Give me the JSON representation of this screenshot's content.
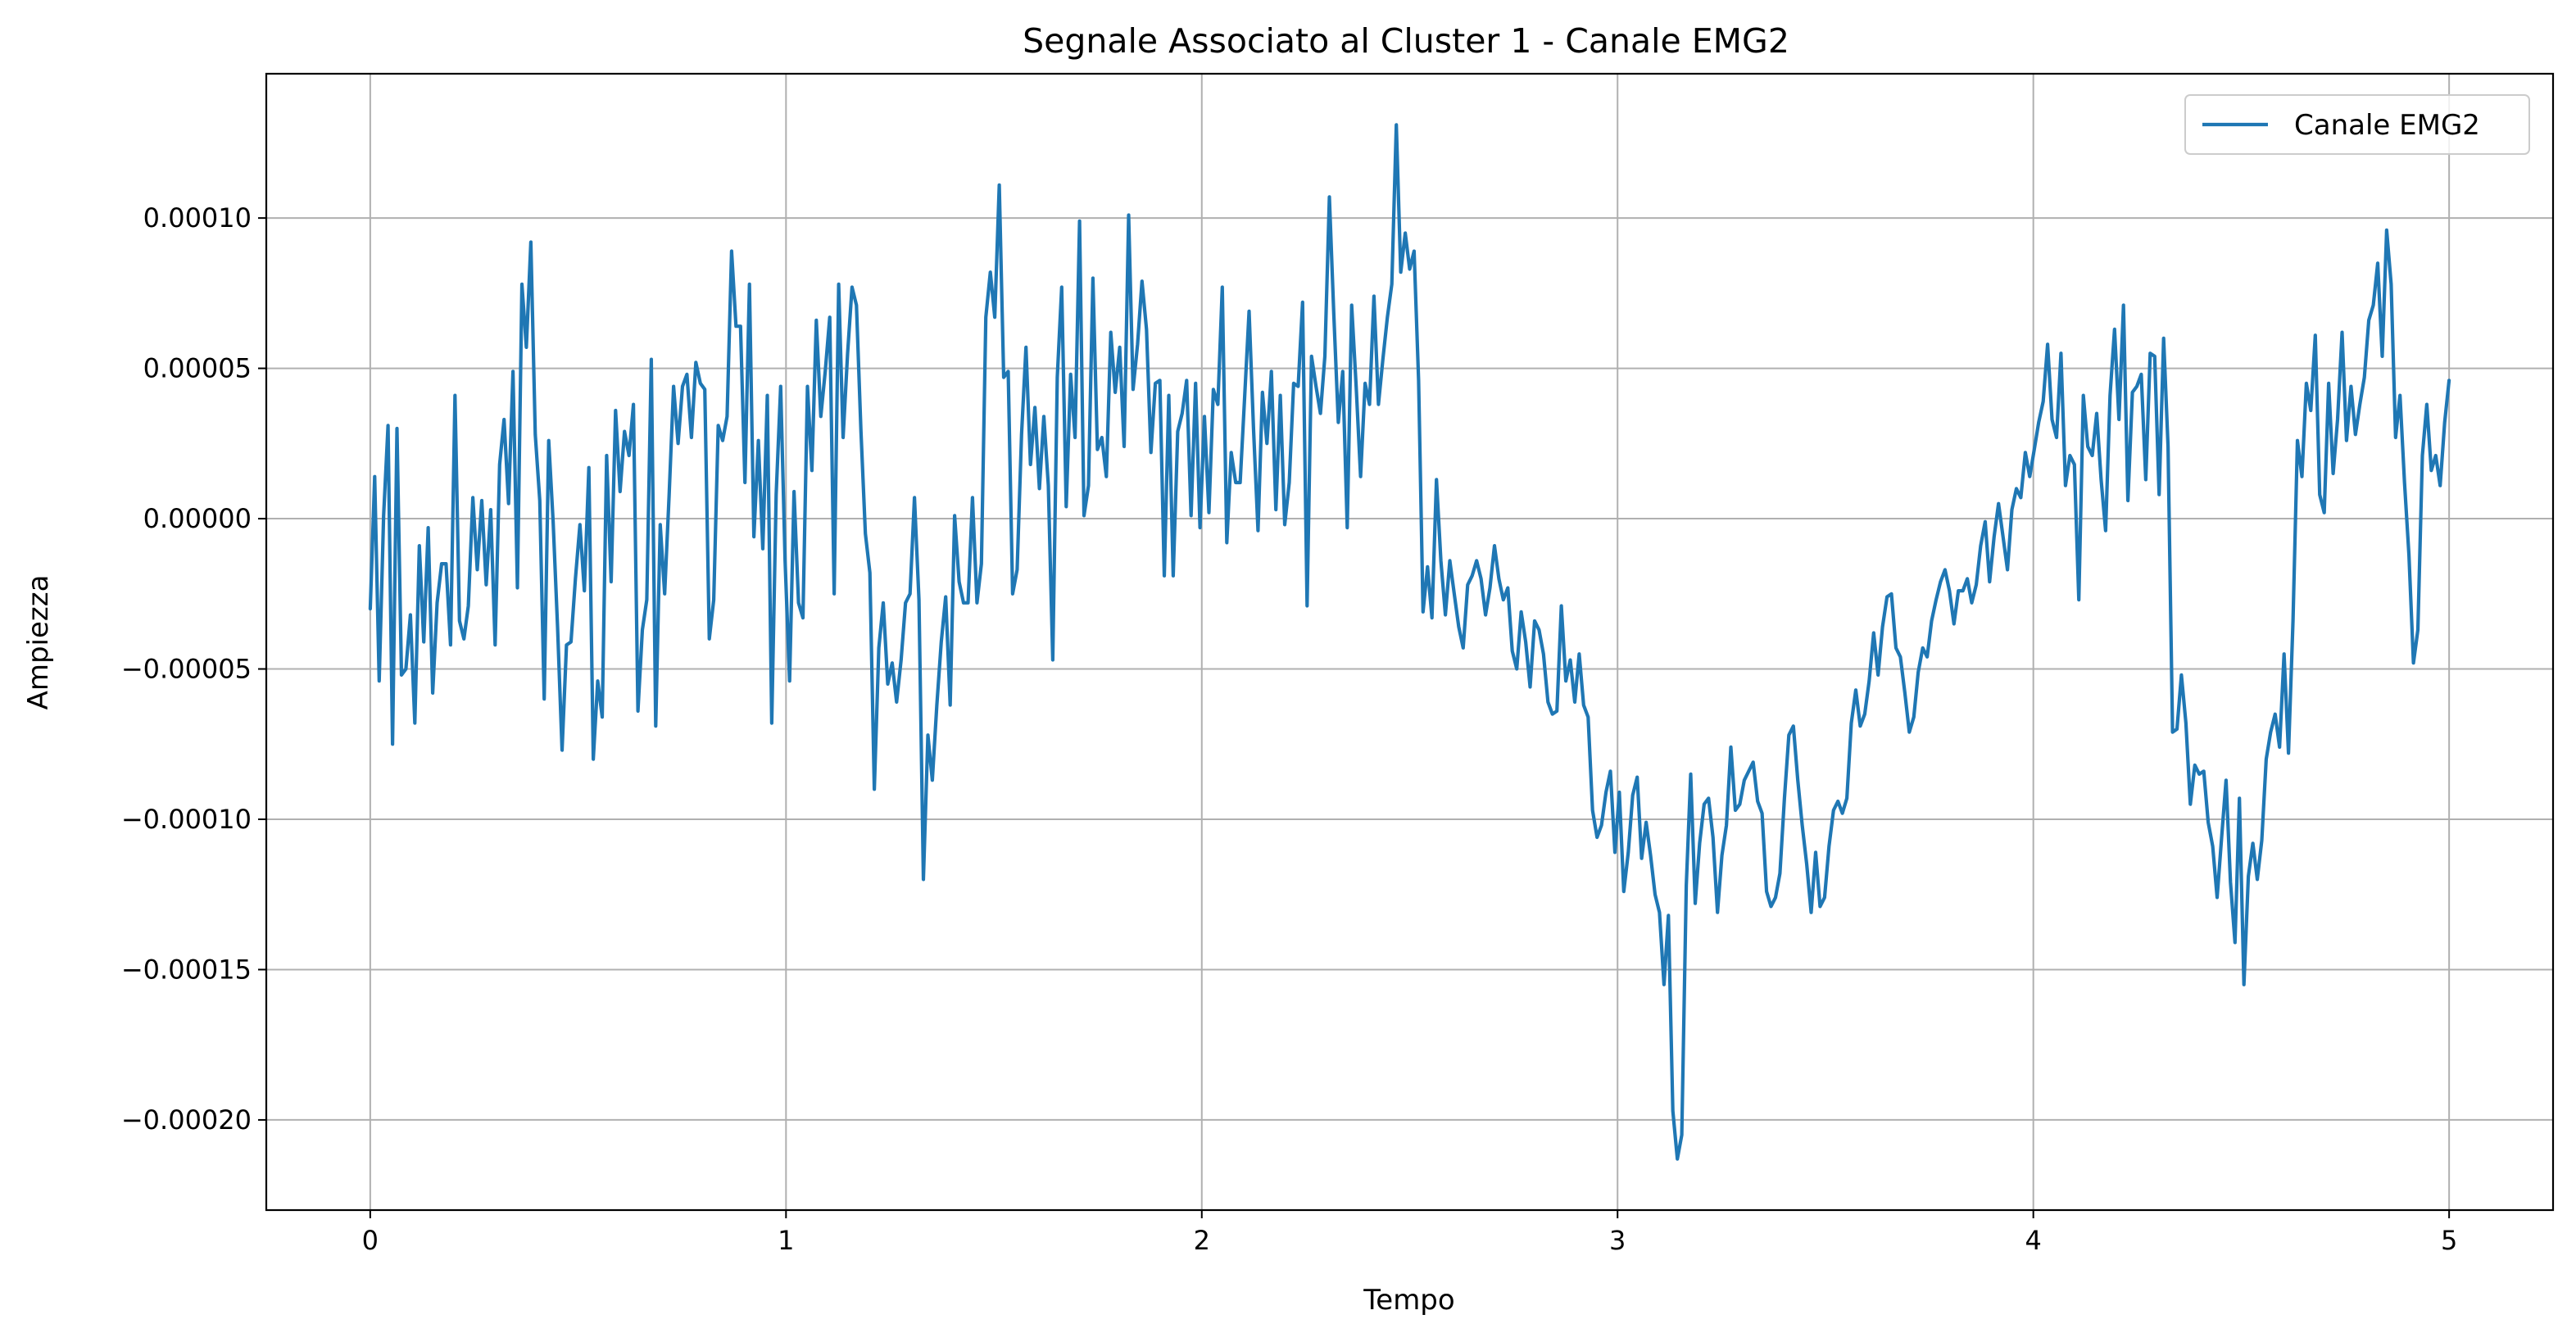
{
  "chart_data": {
    "type": "line",
    "title": "Segnale Associato al Cluster 1 - Canale EMG2",
    "xlabel": "Tempo",
    "ylabel": "Ampiezza",
    "xlim": [
      -0.25,
      5.25
    ],
    "ylim": [
      -0.00023,
      0.000148
    ],
    "grid": true,
    "legend_position": "top-right",
    "x_ticks": [
      0,
      1,
      2,
      3,
      4,
      5
    ],
    "x_tick_labels": [
      "0",
      "1",
      "2",
      "3",
      "4",
      "5"
    ],
    "y_ticks": [
      0.0001,
      5e-05,
      0.0,
      -5e-05,
      -0.0001,
      -0.00015,
      -0.0002
    ],
    "y_tick_labels": [
      "0.00010",
      "0.00005",
      "0.00000",
      "−0.00005",
      "−0.00010",
      "−0.00015",
      "−0.00020"
    ],
    "series": [
      {
        "name": "Canale EMG2",
        "color": "#1f77b4",
        "x_start": 0,
        "x_end": 5,
        "values": [
          -3e-05,
          1.4e-05,
          -5.4e-05,
          1e-06,
          3.1e-05,
          -7.5e-05,
          3e-05,
          -5.2e-05,
          -5e-05,
          -3.2e-05,
          -6.8e-05,
          -9e-06,
          -4.1e-05,
          -3e-06,
          -5.8e-05,
          -2.8e-05,
          -1.5e-05,
          -1.5e-05,
          -4.2e-05,
          4.1e-05,
          -3.4e-05,
          -4e-05,
          -2.9e-05,
          7e-06,
          -1.7e-05,
          6e-06,
          -2.2e-05,
          3e-06,
          -4.2e-05,
          1.8e-05,
          3.3e-05,
          5e-06,
          4.9e-05,
          -2.3e-05,
          7.8e-05,
          5.7e-05,
          9.2e-05,
          2.8e-05,
          6e-06,
          -6e-05,
          2.6e-05,
          -1e-06,
          -3.6e-05,
          -7.7e-05,
          -4.2e-05,
          -4.1e-05,
          -2e-05,
          -2e-06,
          -2.4e-05,
          1.7e-05,
          -8e-05,
          -5.4e-05,
          -6.6e-05,
          2.1e-05,
          -2.1e-05,
          3.6e-05,
          9e-06,
          2.9e-05,
          2.1e-05,
          3.8e-05,
          -6.4e-05,
          -3.7e-05,
          -2.7e-05,
          5.3e-05,
          -6.9e-05,
          -2e-06,
          -2.5e-05,
          8e-06,
          4.4e-05,
          2.5e-05,
          4.4e-05,
          4.8e-05,
          2.7e-05,
          5.2e-05,
          4.5e-05,
          4.3e-05,
          -4e-05,
          -2.7e-05,
          3.1e-05,
          2.6e-05,
          3.4e-05,
          8.9e-05,
          6.4e-05,
          6.4e-05,
          1.2e-05,
          7.8e-05,
          -6e-06,
          2.6e-05,
          -1e-05,
          4.1e-05,
          -6.8e-05,
          8e-06,
          4.4e-05,
          -1.4e-05,
          -5.4e-05,
          9e-06,
          -2.8e-05,
          -3.3e-05,
          4.4e-05,
          1.6e-05,
          6.6e-05,
          3.4e-05,
          4.9e-05,
          6.7e-05,
          -2.5e-05,
          7.8e-05,
          2.7e-05,
          5.5e-05,
          7.7e-05,
          7.1e-05,
          2.9e-05,
          -5e-06,
          -1.8e-05,
          -9e-05,
          -4.3e-05,
          -2.8e-05,
          -5.5e-05,
          -4.8e-05,
          -6.1e-05,
          -4.7e-05,
          -2.8e-05,
          -2.5e-05,
          7e-06,
          -2.7e-05,
          -0.00012,
          -7.2e-05,
          -8.7e-05,
          -6.2e-05,
          -4.1e-05,
          -2.6e-05,
          -6.2e-05,
          1e-06,
          -2.1e-05,
          -2.8e-05,
          -2.8e-05,
          7e-06,
          -2.8e-05,
          -1.5e-05,
          6.7e-05,
          8.2e-05,
          6.7e-05,
          0.000111,
          4.7e-05,
          4.9e-05,
          -2.5e-05,
          -1.7e-05,
          2.8e-05,
          5.7e-05,
          1.8e-05,
          3.7e-05,
          1e-05,
          3.4e-05,
          1.1e-05,
          -4.7e-05,
          4.7e-05,
          7.7e-05,
          4e-06,
          4.8e-05,
          2.7e-05,
          9.9e-05,
          1e-06,
          1.1e-05,
          8e-05,
          2.3e-05,
          2.7e-05,
          1.4e-05,
          6.2e-05,
          4.2e-05,
          5.7e-05,
          2.4e-05,
          0.000101,
          4.3e-05,
          5.8e-05,
          7.9e-05,
          6.3e-05,
          2.2e-05,
          4.5e-05,
          4.6e-05,
          -1.9e-05,
          4.1e-05,
          -1.9e-05,
          2.9e-05,
          3.5e-05,
          4.6e-05,
          1e-06,
          4.5e-05,
          -3e-06,
          3.4e-05,
          2e-06,
          4.3e-05,
          3.8e-05,
          7.7e-05,
          -8e-06,
          2.2e-05,
          1.2e-05,
          1.2e-05,
          4e-05,
          6.9e-05,
          3e-05,
          -4e-06,
          4.2e-05,
          2.5e-05,
          4.9e-05,
          3e-06,
          4.1e-05,
          -2e-06,
          1.2e-05,
          4.5e-05,
          4.4e-05,
          7.2e-05,
          -2.9e-05,
          5.4e-05,
          4.4e-05,
          3.5e-05,
          5.4e-05,
          0.000107,
          6.8e-05,
          3.2e-05,
          4.9e-05,
          -3e-06,
          7.1e-05,
          4.4e-05,
          1.4e-05,
          4.5e-05,
          3.8e-05,
          7.4e-05,
          3.8e-05,
          5.3e-05,
          6.7e-05,
          7.8e-05,
          0.000131,
          8.2e-05,
          9.5e-05,
          8.3e-05,
          8.9e-05,
          4.6e-05,
          -3.1e-05,
          -1.6e-05,
          -3.3e-05,
          1.3e-05,
          -1.4e-05,
          -3.2e-05,
          -1.4e-05,
          -2.5e-05,
          -3.6e-05,
          -4.3e-05,
          -2.2e-05,
          -1.9e-05,
          -1.4e-05,
          -2e-05,
          -3.2e-05,
          -2.3e-05,
          -9e-06,
          -2e-05,
          -2.7e-05,
          -2.3e-05,
          -4.4e-05,
          -5e-05,
          -3.1e-05,
          -4.1e-05,
          -5.6e-05,
          -3.4e-05,
          -3.7e-05,
          -4.5e-05,
          -6.1e-05,
          -6.5e-05,
          -6.4e-05,
          -2.9e-05,
          -5.4e-05,
          -4.7e-05,
          -6.1e-05,
          -4.5e-05,
          -6.2e-05,
          -6.6e-05,
          -9.7e-05,
          -0.000106,
          -0.000102,
          -9.1e-05,
          -8.4e-05,
          -0.000111,
          -9.1e-05,
          -0.000124,
          -0.000111,
          -9.2e-05,
          -8.6e-05,
          -0.000113,
          -0.000101,
          -0.000112,
          -0.000125,
          -0.000131,
          -0.000155,
          -0.000132,
          -0.000197,
          -0.000213,
          -0.000205,
          -0.000122,
          -8.5e-05,
          -0.000128,
          -0.000108,
          -9.5e-05,
          -9.3e-05,
          -0.000106,
          -0.000131,
          -0.000112,
          -0.000102,
          -7.6e-05,
          -9.7e-05,
          -9.5e-05,
          -8.7e-05,
          -8.4e-05,
          -8.1e-05,
          -9.4e-05,
          -9.8e-05,
          -0.000124,
          -0.000129,
          -0.000126,
          -0.000118,
          -9.3e-05,
          -7.2e-05,
          -6.9e-05,
          -8.7e-05,
          -0.000102,
          -0.000115,
          -0.000131,
          -0.000111,
          -0.000129,
          -0.000126,
          -0.000109,
          -9.7e-05,
          -9.4e-05,
          -9.8e-05,
          -9.3e-05,
          -6.8e-05,
          -5.7e-05,
          -6.9e-05,
          -6.5e-05,
          -5.4e-05,
          -3.8e-05,
          -5.2e-05,
          -3.6e-05,
          -2.6e-05,
          -2.5e-05,
          -4.3e-05,
          -4.6e-05,
          -5.8e-05,
          -7.1e-05,
          -6.6e-05,
          -5.1e-05,
          -4.3e-05,
          -4.6e-05,
          -3.4e-05,
          -2.7e-05,
          -2.1e-05,
          -1.7e-05,
          -2.4e-05,
          -3.5e-05,
          -2.4e-05,
          -2.4e-05,
          -2e-05,
          -2.8e-05,
          -2.2e-05,
          -9e-06,
          -1e-06,
          -2.1e-05,
          -6e-06,
          5e-06,
          -6e-06,
          -1.7e-05,
          3e-06,
          1e-05,
          7e-06,
          2.2e-05,
          1.4e-05,
          2.3e-05,
          3.2e-05,
          3.9e-05,
          5.8e-05,
          3.3e-05,
          2.7e-05,
          5.5e-05,
          1.1e-05,
          2.1e-05,
          1.8e-05,
          -2.7e-05,
          4.1e-05,
          2.4e-05,
          2.1e-05,
          3.5e-05,
          1.3e-05,
          -4e-06,
          4.1e-05,
          6.3e-05,
          3.3e-05,
          7.1e-05,
          6e-06,
          4.2e-05,
          4.4e-05,
          4.8e-05,
          1.3e-05,
          5.5e-05,
          5.4e-05,
          8e-06,
          6e-05,
          2.4e-05,
          -7.1e-05,
          -7e-05,
          -5.2e-05,
          -6.8e-05,
          -9.5e-05,
          -8.2e-05,
          -8.5e-05,
          -8.4e-05,
          -0.000101,
          -0.000109,
          -0.000126,
          -0.000106,
          -8.7e-05,
          -0.000121,
          -0.000141,
          -9.3e-05,
          -0.000155,
          -0.000119,
          -0.000108,
          -0.00012,
          -0.000107,
          -8e-05,
          -7.1e-05,
          -6.5e-05,
          -7.6e-05,
          -4.5e-05,
          -7.8e-05,
          -3.4e-05,
          2.6e-05,
          1.4e-05,
          4.5e-05,
          3.6e-05,
          6.1e-05,
          8e-06,
          2e-06,
          4.5e-05,
          1.5e-05,
          3.3e-05,
          6.2e-05,
          2.6e-05,
          4.4e-05,
          2.8e-05,
          3.8e-05,
          4.7e-05,
          6.6e-05,
          7.1e-05,
          8.5e-05,
          5.4e-05,
          9.6e-05,
          7.8e-05,
          2.7e-05,
          4.1e-05,
          1.2e-05,
          -1.2e-05,
          -4.8e-05,
          -3.7e-05,
          2.1e-05,
          3.8e-05,
          1.6e-05,
          2.1e-05,
          1.1e-05,
          3.2e-05,
          4.6e-05
        ]
      }
    ]
  }
}
